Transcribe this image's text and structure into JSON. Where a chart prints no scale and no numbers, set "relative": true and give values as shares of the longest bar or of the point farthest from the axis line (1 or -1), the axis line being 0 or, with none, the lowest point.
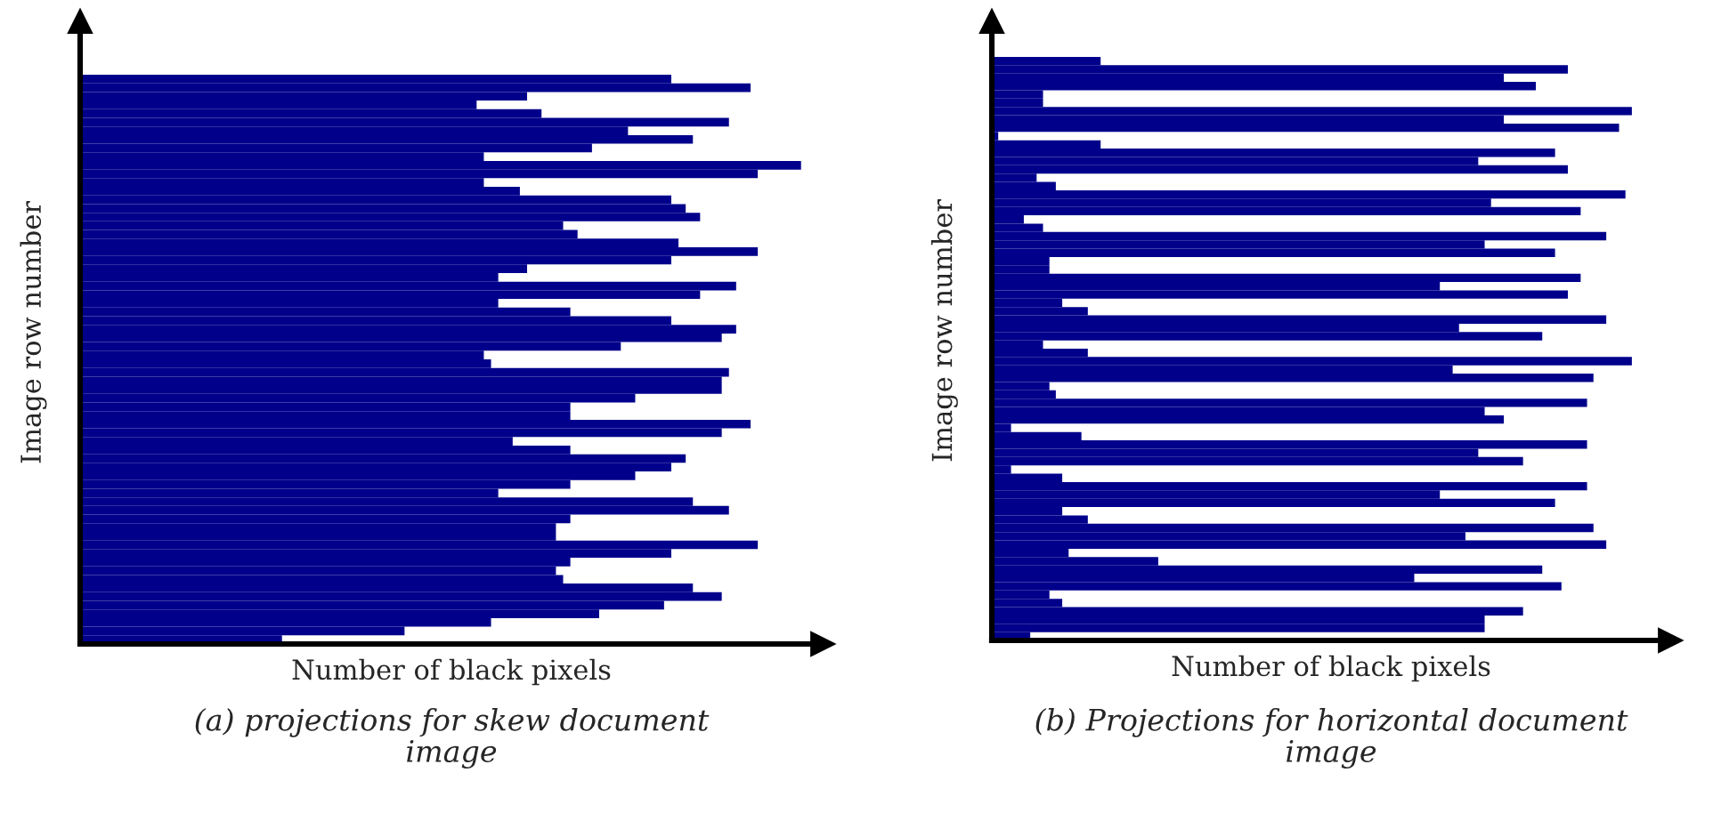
{
  "chart_data": [
    {
      "type": "bar",
      "orientation": "horizontal",
      "relative": true,
      "xlabel": "Number of black pixels",
      "ylabel": "Image row number",
      "annotations": [
        "(a) projections for skew document image"
      ],
      "categories": [
        null,
        null,
        null,
        null,
        null,
        null,
        null,
        null,
        null,
        null,
        null,
        null,
        null,
        null,
        null,
        null,
        null,
        null,
        null,
        null,
        null,
        null,
        null,
        null,
        null,
        null,
        null,
        null,
        null,
        null,
        null,
        null,
        null,
        null,
        null,
        null,
        null,
        null,
        null,
        null,
        null,
        null,
        null,
        null,
        null,
        null,
        null,
        null,
        null,
        null,
        null,
        null,
        null,
        null,
        null,
        null,
        null,
        null,
        null,
        null,
        null,
        null,
        null,
        null,
        null,
        null
      ],
      "series": [
        {
          "color": "#00008b",
          "values": [
            0.82,
            0.93,
            0.62,
            0.55,
            0.64,
            0.9,
            0.76,
            0.85,
            0.71,
            0.56,
            1.0,
            0.94,
            0.56,
            0.61,
            0.82,
            0.84,
            0.86,
            0.67,
            0.69,
            0.83,
            0.94,
            0.82,
            0.62,
            0.58,
            0.91,
            0.86,
            0.58,
            0.68,
            0.82,
            0.91,
            0.89,
            0.75,
            0.56,
            0.57,
            0.9,
            0.89,
            0.89,
            0.77,
            0.68,
            0.68,
            0.93,
            0.89,
            0.6,
            0.68,
            0.84,
            0.82,
            0.77,
            0.68,
            0.58,
            0.85,
            0.9,
            0.68,
            0.66,
            0.66,
            0.94,
            0.82,
            0.68,
            0.66,
            0.67,
            0.85,
            0.89,
            0.81,
            0.72,
            0.57,
            0.45,
            0.28
          ]
        }
      ]
    },
    {
      "type": "bar",
      "orientation": "horizontal",
      "relative": true,
      "xlabel": "Number of black pixels",
      "ylabel": "Image row number",
      "annotations": [
        "(b) Projections for horizontal document image"
      ],
      "categories": [
        null,
        null,
        null,
        null,
        null,
        null,
        null,
        null,
        null,
        null,
        null,
        null,
        null,
        null,
        null,
        null,
        null,
        null,
        null,
        null,
        null,
        null,
        null,
        null,
        null,
        null,
        null,
        null,
        null,
        null,
        null,
        null,
        null,
        null,
        null,
        null,
        null,
        null,
        null,
        null,
        null,
        null,
        null,
        null,
        null,
        null,
        null,
        null,
        null,
        null,
        null,
        null,
        null,
        null,
        null,
        null,
        null,
        null,
        null,
        null,
        null,
        null,
        null,
        null,
        null,
        null,
        null,
        null,
        null,
        null
      ],
      "series": [
        {
          "color": "#00008b",
          "values": [
            0.17,
            0.9,
            0.8,
            0.85,
            0.08,
            0.08,
            1.0,
            0.8,
            0.98,
            0.01,
            0.17,
            0.88,
            0.76,
            0.9,
            0.07,
            0.1,
            0.99,
            0.78,
            0.92,
            0.05,
            0.08,
            0.96,
            0.77,
            0.88,
            0.09,
            0.09,
            0.92,
            0.7,
            0.9,
            0.11,
            0.15,
            0.96,
            0.73,
            0.86,
            0.08,
            0.15,
            1.0,
            0.72,
            0.94,
            0.09,
            0.1,
            0.93,
            0.77,
            0.8,
            0.03,
            0.14,
            0.93,
            0.76,
            0.83,
            0.03,
            0.11,
            0.93,
            0.7,
            0.88,
            0.11,
            0.15,
            0.94,
            0.74,
            0.96,
            0.12,
            0.26,
            0.86,
            0.66,
            0.89,
            0.09,
            0.11,
            0.83,
            0.77,
            0.77,
            0.06
          ]
        }
      ]
    }
  ]
}
